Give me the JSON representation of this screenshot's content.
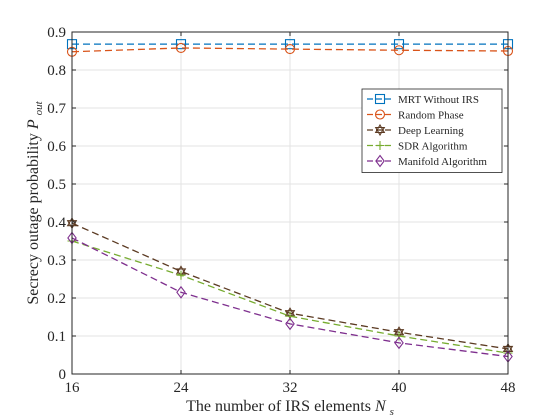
{
  "chart_data": {
    "type": "line",
    "title": "",
    "xlabel": "The number of IRS elements",
    "xlabel_symbol": "N",
    "xlabel_subscript": "s",
    "ylabel": "Secrecy outage probability",
    "ylabel_symbol": "P",
    "ylabel_subscript": "out",
    "x": [
      16,
      24,
      32,
      40,
      48
    ],
    "xlim": [
      16,
      48
    ],
    "ylim": [
      0,
      0.9
    ],
    "xticks": [
      "16",
      "24",
      "32",
      "40",
      "48"
    ],
    "yticks": [
      "0",
      "0.1",
      "0.2",
      "0.3",
      "0.4",
      "0.5",
      "0.6",
      "0.7",
      "0.8",
      "0.9"
    ],
    "grid": true,
    "legend_position": "top-right",
    "series": [
      {
        "name": "MRT Without IRS",
        "color": "#0072BD",
        "marker": "square",
        "values": [
          0.868,
          0.868,
          0.868,
          0.868,
          0.868
        ]
      },
      {
        "name": "Random Phase",
        "color": "#D95319",
        "marker": "circle",
        "values": [
          0.848,
          0.858,
          0.855,
          0.852,
          0.85
        ]
      },
      {
        "name": "Deep Learning",
        "color": "#5B3A22",
        "marker": "hexagram",
        "values": [
          0.397,
          0.27,
          0.16,
          0.11,
          0.066
        ]
      },
      {
        "name": "SDR Algorithm",
        "color": "#77AC30",
        "marker": "plus",
        "values": [
          0.35,
          0.26,
          0.152,
          0.1,
          0.055
        ]
      },
      {
        "name": "Manifold Algorithm",
        "color": "#7E2F8E",
        "marker": "diamond",
        "values": [
          0.358,
          0.215,
          0.132,
          0.082,
          0.046
        ]
      }
    ]
  }
}
